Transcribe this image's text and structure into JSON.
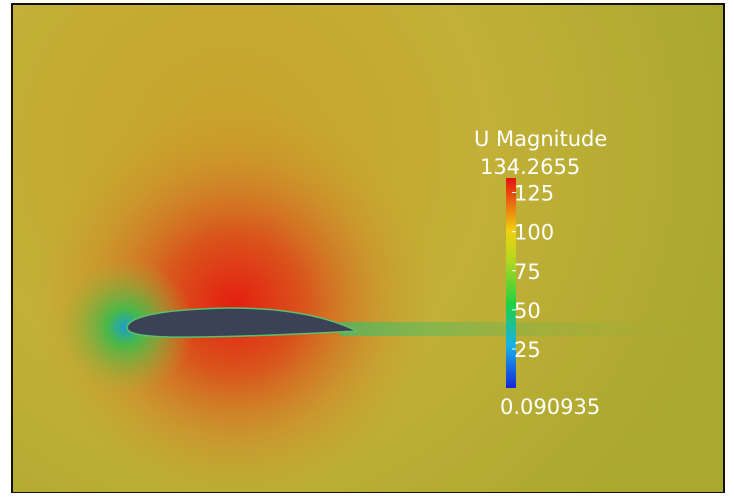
{
  "colorbar": {
    "title": "U Magnitude",
    "range": [
      0.090935,
      134.2655
    ],
    "ticks": [
      25,
      50,
      75,
      100,
      125
    ]
  }
}
